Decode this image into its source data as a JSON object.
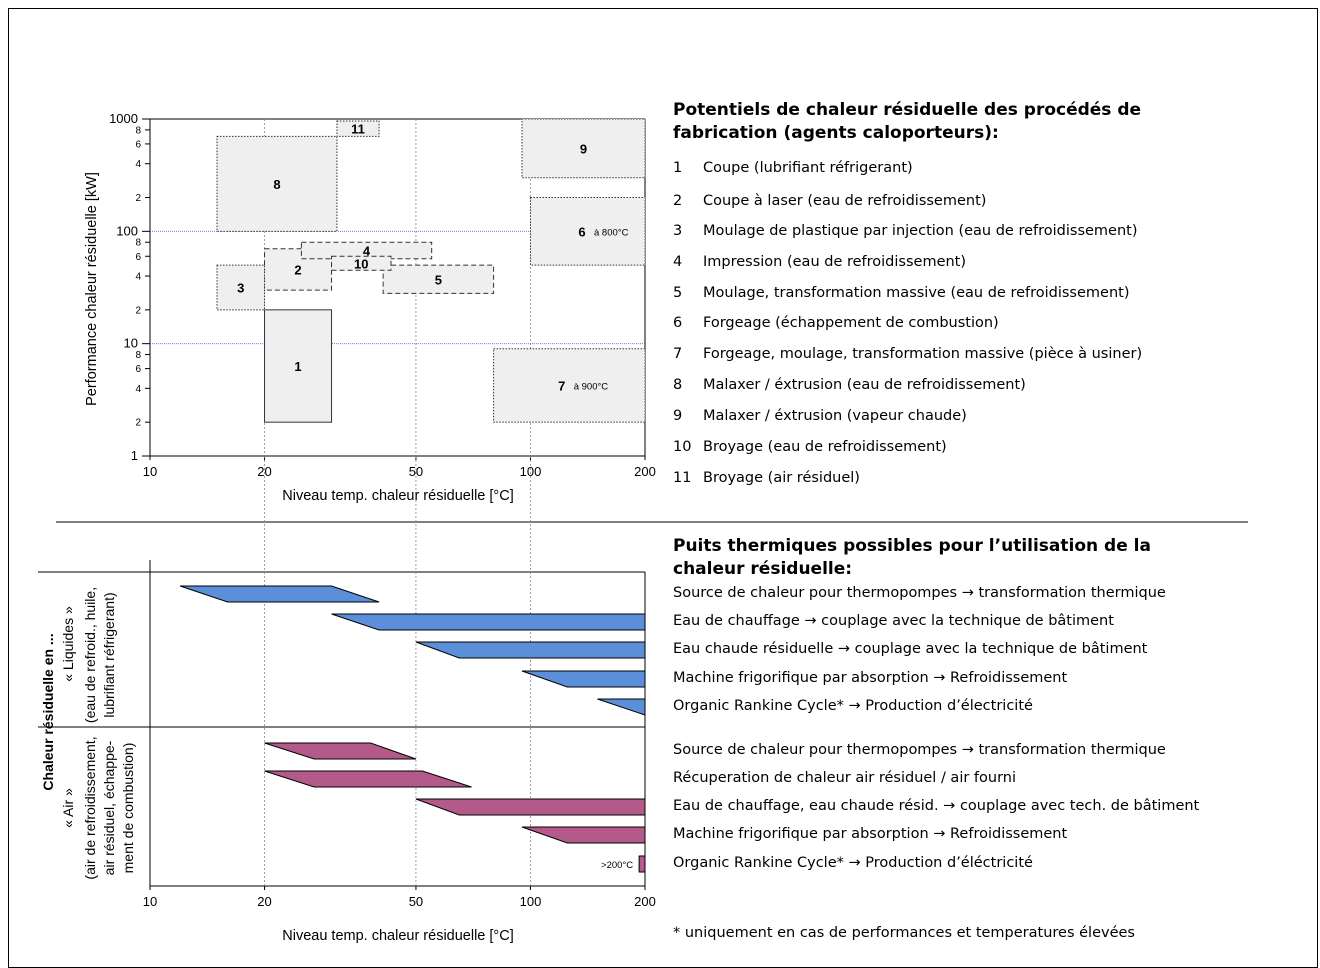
{
  "colors": {
    "box_fill": "#efefef",
    "grid_blue": "#4a6fe0",
    "liquid_bar": "#5b8fd9",
    "air_bar": "#b35a8a"
  },
  "chart_data": [
    {
      "type": "range-boxes",
      "xlabel": "Niveau temp. chaleur résiduelle  [°C]",
      "ylabel": "Performance chaleur résiduelle  [kW]",
      "xscale": "log",
      "yscale": "log",
      "xlim": [
        10,
        200
      ],
      "ylim": [
        1,
        1000
      ],
      "x_ticks": [
        "10",
        "20",
        "50",
        "100",
        "200"
      ],
      "y_ticks_major": [
        "1",
        "10",
        "100",
        "1000"
      ],
      "y_ticks_minor": [
        "2",
        "4",
        "6",
        "8"
      ],
      "grid": "dotted vertical at 20, 50, 100; blue horizontal at 10 and 100",
      "boxes": [
        {
          "label": "1",
          "x": [
            20,
            30
          ],
          "y": [
            2,
            20
          ],
          "style": "solid"
        },
        {
          "label": "2",
          "x": [
            20,
            30
          ],
          "y": [
            30,
            70
          ],
          "style": "dashed"
        },
        {
          "label": "3",
          "x": [
            15,
            20
          ],
          "y": [
            20,
            50
          ],
          "style": "dotted"
        },
        {
          "label": "4",
          "x": [
            25,
            55
          ],
          "y": [
            57,
            80
          ],
          "style": "dashed"
        },
        {
          "label": "5",
          "x": [
            41,
            80
          ],
          "y": [
            28,
            50
          ],
          "style": "dashed"
        },
        {
          "label": "6",
          "x": [
            100,
            200
          ],
          "y": [
            50,
            200
          ],
          "style": "dotted",
          "note": "à 800°C"
        },
        {
          "label": "7",
          "x": [
            80,
            200
          ],
          "y": [
            2,
            9
          ],
          "style": "dotted",
          "note": "à 900°C"
        },
        {
          "label": "8",
          "x": [
            15,
            31
          ],
          "y": [
            100,
            700
          ],
          "style": "dotted"
        },
        {
          "label": "9",
          "x": [
            95,
            200
          ],
          "y": [
            300,
            1000
          ],
          "style": "dotted"
        },
        {
          "label": "10",
          "x": [
            30,
            43
          ],
          "y": [
            45,
            60
          ],
          "style": "dashed"
        },
        {
          "label": "11",
          "x": [
            31,
            40
          ],
          "y": [
            700,
            960
          ],
          "style": "dotted"
        }
      ]
    },
    {
      "type": "range-bars",
      "xlabel": "Niveau temp. chaleur résiduelle  [°C]",
      "xscale": "log",
      "xlim": [
        10,
        200
      ],
      "x_ticks": [
        "10",
        "20",
        "50",
        "100",
        "200"
      ],
      "group_title": "Chaleur résiduelle en ...",
      "groups": [
        {
          "name": "« Liquides »",
          "desc": [
            "(eau de refroid., huile,",
            "lubrifiant réfrigerant)"
          ],
          "bars": [
            {
              "start": 12,
              "end": 30,
              "top_start": 12,
              "top_end": 30,
              "bot_start": 16,
              "bot_end": 40
            },
            {
              "top_start": 30,
              "top_end": 200,
              "bot_start": 40,
              "bot_end": 200
            },
            {
              "top_start": 50,
              "top_end": 200,
              "bot_start": 65,
              "bot_end": 200
            },
            {
              "top_start": 95,
              "top_end": 200,
              "bot_start": 125,
              "bot_end": 200
            },
            {
              "top_start": 150,
              "top_end": 200,
              "bot_start": 200,
              "bot_end": 200
            }
          ]
        },
        {
          "name": "« Air »",
          "desc": [
            "(air de refroidissement,",
            "air résiduel, échappe-",
            "ment de combustion)"
          ],
          "bars": [
            {
              "top_start": 20,
              "top_end": 38,
              "bot_start": 27,
              "bot_end": 50
            },
            {
              "top_start": 20,
              "top_end": 52,
              "bot_start": 27,
              "bot_end": 70
            },
            {
              "top_start": 50,
              "top_end": 200,
              "bot_start": 65,
              "bot_end": 200
            },
            {
              "top_start": 95,
              "top_end": 200,
              "bot_start": 125,
              "bot_end": 200
            },
            {
              "top_start": 193,
              "top_end": 200,
              "bot_start": 193,
              "bot_end": 200,
              "note": ">200°C"
            }
          ]
        }
      ]
    }
  ],
  "legend_top": {
    "title": "Potentiels de chaleur résiduelle des procédés de fabrication (agents caloporteurs):",
    "items": [
      {
        "num": "1",
        "text": "Coupe (lubrifiant réfrigerant)"
      },
      {
        "num": "2",
        "text": "Coupe à laser (eau de refroidissement)"
      },
      {
        "num": "3",
        "text": "Moulage de plastique par injection (eau de refroidissement)"
      },
      {
        "num": "4",
        "text": "Impression (eau de refroidissement)"
      },
      {
        "num": "5",
        "text": "Moulage, transformation massive (eau de refroidissement)"
      },
      {
        "num": "6",
        "text": "Forgeage (échappement de combustion)"
      },
      {
        "num": "7",
        "text": "Forgeage, moulage, transformation massive (pièce à usiner)"
      },
      {
        "num": "8",
        "text": "Malaxer / éxtrusion (eau de refroidissement)"
      },
      {
        "num": "9",
        "text": "Malaxer / éxtrusion (vapeur chaude)"
      },
      {
        "num": "10",
        "text": "Broyage (eau de refroidissement)"
      },
      {
        "num": "11",
        "text": "Broyage (air résiduel)"
      }
    ]
  },
  "legend_bottom": {
    "title": "Puits thermiques possibles pour l’utilisation de la chaleur résiduelle:",
    "liquid_items": [
      "Source de chaleur pour thermopompes → transformation thermique",
      "Eau de chauffage → couplage avec la technique de bâtiment",
      "Eau chaude résiduelle → couplage avec la technique de bâtiment",
      "Machine frigorifique par absorption → Refroidissement",
      "Organic Rankine Cycle* → Production d’électricité"
    ],
    "air_items": [
      "Source de chaleur pour thermopompes → transformation thermique",
      "Récuperation de chaleur air résiduel / air fourni",
      "Eau de chauffage, eau chaude résid. → couplage avec tech. de bâtiment",
      "Machine frigorifique par absorption → Refroidissement",
      "Organic Rankine Cycle* → Production d’éléctricité"
    ],
    "footnote": "* uniquement en cas de performances et temperatures élevées"
  }
}
